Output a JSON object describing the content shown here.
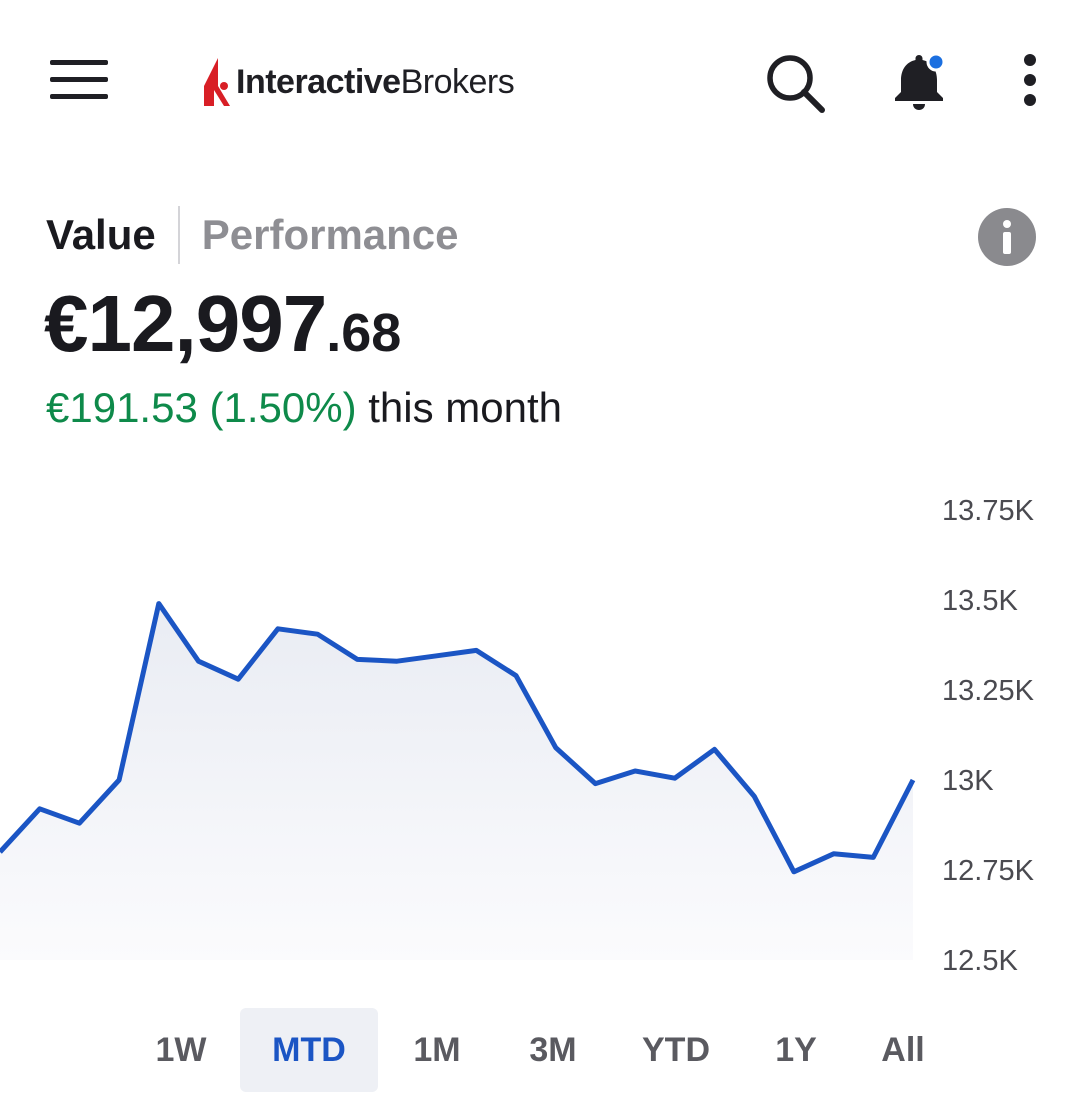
{
  "header": {
    "logo_bold": "Interactive",
    "logo_regular": "Brokers",
    "brand_color": "#d81f26",
    "icons": [
      "menu-icon",
      "search-icon",
      "bell-icon",
      "more-vertical-icon"
    ],
    "notification_dot_color": "#1b6fe0"
  },
  "tabs": {
    "value": "Value",
    "performance": "Performance",
    "active": "Value"
  },
  "balance": {
    "main": "€12,997",
    "cents": ".68"
  },
  "change": {
    "amount": "€191.53 (1.50%)",
    "period": " this month",
    "color": "#0e8a4a"
  },
  "chart_data": {
    "type": "area",
    "y_ticks": [
      "13.75K",
      "13.5K",
      "13.25K",
      "13K",
      "12.75K",
      "12.5K"
    ],
    "ylim": [
      12500,
      13750
    ],
    "line_color": "#1b55c4",
    "y": [
      12800,
      12920,
      12880,
      13000,
      13490,
      13330,
      13280,
      13420,
      13405,
      13335,
      13330,
      13345,
      13360,
      13290,
      13090,
      12990,
      13025,
      13005,
      13085,
      12955,
      12745,
      12795,
      12785,
      13000
    ]
  },
  "ranges": {
    "items": [
      "1W",
      "MTD",
      "1M",
      "3M",
      "YTD",
      "1Y",
      "All"
    ],
    "active": "MTD",
    "accent_color": "#1b55c4"
  }
}
